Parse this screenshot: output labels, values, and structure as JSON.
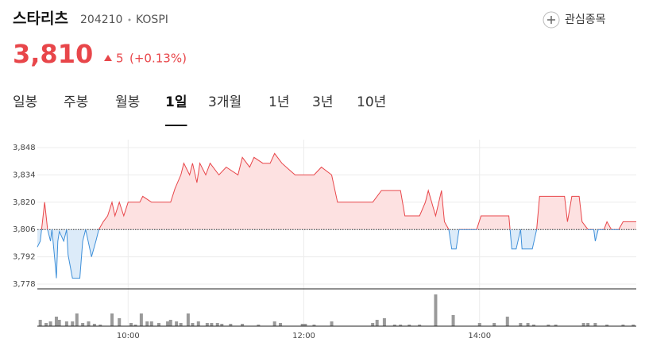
{
  "header": {
    "name": "스타리츠",
    "code": "204210",
    "market": "KOSPI",
    "watch_button": "관심종목",
    "price": "3,810",
    "change": 5,
    "change_percent": "(+0.13%)"
  },
  "tabs": [
    "일봉",
    "주봉",
    "월봉",
    "1일",
    "3개월",
    "1년",
    "3년",
    "10년"
  ],
  "active_tab": 3,
  "chart_data": {
    "type": "line",
    "up_color": "#e8464a",
    "up_fill": "#fde1e1",
    "down_color": "#3d8fd9",
    "down_fill": "#dcebf9",
    "volume_color": "#9a9a9a",
    "base_price": 3806,
    "xlim": [
      538,
      947
    ],
    "xticks": [
      {
        "value": 600,
        "label": "10:00"
      },
      {
        "value": 720,
        "label": "12:00"
      },
      {
        "value": 840,
        "label": "14:00"
      }
    ],
    "ylim": [
      3778,
      3848
    ],
    "yticks": [
      {
        "value": 3778,
        "label": "3,778"
      },
      {
        "value": 3792,
        "label": "3,792"
      },
      {
        "value": 3806,
        "label": "3,806"
      },
      {
        "value": 3820,
        "label": "3,820"
      },
      {
        "value": 3834,
        "label": "3,834"
      },
      {
        "value": 3848,
        "label": "3,848"
      }
    ],
    "grid": true,
    "x": [
      538,
      540,
      543,
      545,
      547,
      548,
      550,
      551,
      552,
      553,
      556,
      558,
      559,
      562,
      567,
      569,
      571,
      575,
      578,
      580,
      583,
      586,
      589,
      591,
      594,
      597,
      600,
      608,
      610,
      616,
      629,
      632,
      636,
      638,
      642,
      644,
      647,
      649,
      653,
      656,
      662,
      667,
      675,
      678,
      683,
      686,
      692,
      697,
      700,
      705,
      711,
      714,
      727,
      732,
      739,
      743,
      767,
      773,
      786,
      789,
      799,
      803,
      805,
      810,
      814,
      816,
      819,
      821,
      824,
      826,
      838,
      841,
      860,
      862,
      865,
      868,
      869,
      876,
      879,
      881,
      898,
      900,
      903,
      908,
      910,
      914,
      918,
      919,
      921,
      925,
      927,
      930,
      935,
      938,
      947
    ],
    "values": [
      3797,
      3800,
      3820,
      3806,
      3800,
      3806,
      3790,
      3781,
      3800,
      3805,
      3800,
      3806,
      3793,
      3781,
      3781,
      3800,
      3806,
      3792,
      3800,
      3806,
      3810,
      3813,
      3820,
      3813,
      3820,
      3813,
      3820,
      3820,
      3823,
      3820,
      3820,
      3827,
      3834,
      3840,
      3834,
      3840,
      3830,
      3840,
      3834,
      3840,
      3834,
      3838,
      3834,
      3843,
      3838,
      3843,
      3840,
      3840,
      3845,
      3840,
      3836,
      3834,
      3834,
      3838,
      3834,
      3820,
      3820,
      3826,
      3826,
      3813,
      3813,
      3820,
      3826,
      3813,
      3826,
      3810,
      3806,
      3796,
      3796,
      3806,
      3806,
      3813,
      3813,
      3796,
      3796,
      3806,
      3796,
      3796,
      3806,
      3823,
      3823,
      3810,
      3823,
      3823,
      3810,
      3806,
      3806,
      3800,
      3806,
      3806,
      3810,
      3806,
      3806,
      3810,
      3810
    ],
    "volume": {
      "ylim": [
        0,
        45
      ],
      "x": [
        540,
        544,
        547,
        551,
        553,
        558,
        562,
        565,
        569,
        573,
        577,
        581,
        589,
        594,
        602,
        605,
        609,
        613,
        616,
        621,
        627,
        629,
        633,
        636,
        641,
        644,
        648,
        654,
        657,
        661,
        664,
        670,
        678,
        689,
        700,
        704,
        719,
        721,
        727,
        739,
        767,
        770,
        775,
        782,
        786,
        792,
        799,
        810,
        822,
        840,
        850,
        859,
        868,
        873,
        877,
        887,
        892,
        911,
        914,
        919,
        927,
        938,
        945
      ],
      "values": [
        8,
        4,
        6,
        12,
        8,
        6,
        6,
        16,
        4,
        6,
        3,
        2,
        16,
        10,
        4,
        2,
        16,
        6,
        6,
        4,
        6,
        8,
        6,
        4,
        16,
        4,
        6,
        4,
        4,
        4,
        3,
        3,
        3,
        2,
        6,
        4,
        3,
        3,
        2,
        6,
        4,
        8,
        10,
        2,
        2,
        2,
        2,
        40,
        14,
        4,
        4,
        12,
        4,
        4,
        2,
        2,
        2,
        4,
        4,
        4,
        2,
        2,
        2
      ]
    }
  }
}
